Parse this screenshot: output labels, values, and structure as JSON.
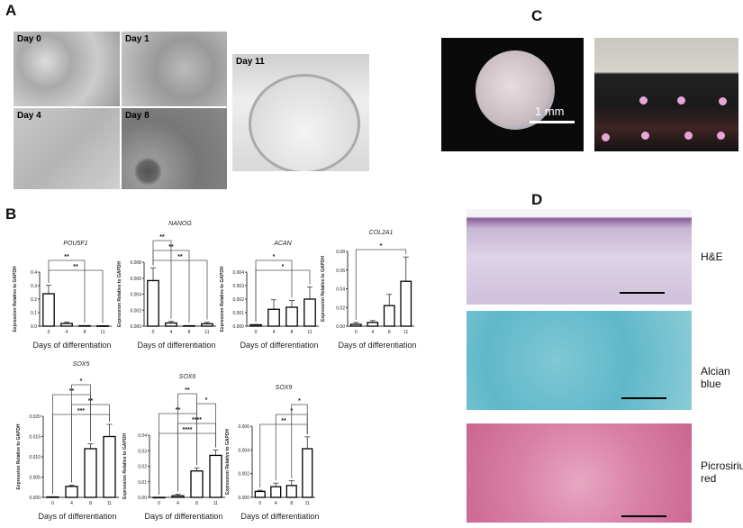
{
  "panels": {
    "a": "A",
    "b": "B",
    "c": "C",
    "d": "D"
  },
  "panel_a": {
    "days": [
      "Day 0",
      "Day 1",
      "Day 4",
      "Day 8"
    ],
    "dish_label": "Day 11"
  },
  "panel_c": {
    "scale_label": "1 mm"
  },
  "panel_d": {
    "stains": [
      "H&E",
      "Alcian blue",
      "Picrosirius red"
    ]
  },
  "colors": {
    "bar_fill": "#ffffff",
    "bar_stroke": "#000000",
    "bracket": "#555555"
  },
  "chart_data": [
    {
      "type": "bar",
      "title": "POU5F1",
      "ylabel": "Expression Relative to GAPDH",
      "xlabel": "Days of differentiation",
      "categories": [
        "0",
        "4",
        "8",
        "11"
      ],
      "values": [
        0.24,
        0.02,
        0.003,
        0.002
      ],
      "errors": [
        0.062,
        0.01,
        0.001,
        0.001
      ],
      "ylim": [
        0,
        0.4
      ],
      "yticks": [
        "0.0",
        "0.1",
        "0.2",
        "0.3",
        "0.4"
      ],
      "significance": [
        {
          "from": "0",
          "to": "8",
          "label": "**"
        },
        {
          "from": "0",
          "to": "11",
          "label": "**"
        }
      ]
    },
    {
      "type": "bar",
      "title": "NANOG",
      "ylabel": "Expression Relative to GAPDH",
      "xlabel": "Days of differentiation",
      "categories": [
        "0",
        "4",
        "8",
        "11"
      ],
      "values": [
        0.0057,
        0.0004,
        5e-05,
        0.0003
      ],
      "errors": [
        0.0016,
        0.0002,
        2e-05,
        0.0002
      ],
      "ylim": [
        0,
        0.008
      ],
      "yticks": [
        "0.000",
        "0.002",
        "0.004",
        "0.006",
        "0.008"
      ],
      "significance": [
        {
          "from": "0",
          "to": "4",
          "label": "**"
        },
        {
          "from": "0",
          "to": "8",
          "label": "**"
        },
        {
          "from": "0",
          "to": "11",
          "label": "**"
        }
      ]
    },
    {
      "type": "bar",
      "title": "ACAN",
      "ylabel": "Expression Relative to GAPDH",
      "xlabel": "Days of differentiation",
      "categories": [
        "0",
        "4",
        "8",
        "11"
      ],
      "values": [
        0.0001,
        0.00125,
        0.0014,
        0.002
      ],
      "errors": [
        2e-05,
        0.0007,
        0.0005,
        0.0009
      ],
      "ylim": [
        0,
        0.004
      ],
      "yticks": [
        "0.000",
        "0.001",
        "0.002",
        "0.003",
        "0.004"
      ],
      "significance": [
        {
          "from": "0",
          "to": "8",
          "label": "*"
        },
        {
          "from": "0",
          "to": "11",
          "label": "*"
        }
      ]
    },
    {
      "type": "bar",
      "title": "COL2A1",
      "ylabel": "Expression Relative to GAPDH",
      "xlabel": "Days of differentiation",
      "categories": [
        "0",
        "4",
        "8",
        "11"
      ],
      "values": [
        0.002,
        0.004,
        0.022,
        0.048
      ],
      "errors": [
        0.002,
        0.002,
        0.012,
        0.026
      ],
      "ylim": [
        0,
        0.08
      ],
      "yticks": [
        "0.00",
        "0.02",
        "0.04",
        "0.06",
        "0.08"
      ],
      "significance": [
        {
          "from": "0",
          "to": "11",
          "label": "*"
        }
      ]
    },
    {
      "type": "bar",
      "title": "SOX5",
      "ylabel": "Expression Relative to GAPDH",
      "xlabel": "Days of differentiation",
      "categories": [
        "0",
        "4",
        "8",
        "11"
      ],
      "values": [
        0.0001,
        0.0027,
        0.012,
        0.015
      ],
      "errors": [
        5e-05,
        0.0003,
        0.0012,
        0.003
      ],
      "ylim": [
        0,
        0.02
      ],
      "yticks": [
        "0.000",
        "0.005",
        "0.010",
        "0.015",
        "0.020"
      ],
      "significance": [
        {
          "from": "4",
          "to": "8",
          "label": "*"
        },
        {
          "from": "0",
          "to": "8",
          "label": "**"
        },
        {
          "from": "4",
          "to": "11",
          "label": "**"
        },
        {
          "from": "0",
          "to": "11",
          "label": "***"
        }
      ]
    },
    {
      "type": "bar",
      "title": "SOX6",
      "ylabel": "Expression Relative to GAPDH",
      "xlabel": "Days of differentiation",
      "categories": [
        "0",
        "4",
        "8",
        "11"
      ],
      "values": [
        0,
        0.001,
        0.017,
        0.027
      ],
      "errors": [
        0,
        0.001,
        0.002,
        0.0035
      ],
      "ylim": [
        0,
        0.04
      ],
      "yticks": [
        "0.00",
        "0.01",
        "0.02",
        "0.03",
        "0.04"
      ],
      "significance": [
        {
          "from": "4",
          "to": "8",
          "label": "**"
        },
        {
          "from": "8",
          "to": "11",
          "label": "*"
        },
        {
          "from": "0",
          "to": "8",
          "label": "**"
        },
        {
          "from": "4",
          "to": "11",
          "label": "****"
        },
        {
          "from": "0",
          "to": "11",
          "label": "****"
        }
      ]
    },
    {
      "type": "bar",
      "title": "SOX9",
      "ylabel": "Expression Relative to GAPDH",
      "xlabel": "Days of differentiation",
      "categories": [
        "0",
        "4",
        "8",
        "11"
      ],
      "values": [
        0.0005,
        0.0009,
        0.001,
        0.0041
      ],
      "errors": [
        0.0001,
        0.0003,
        0.0004,
        0.001
      ],
      "ylim": [
        0,
        0.006
      ],
      "yticks": [
        "0.000",
        "0.002",
        "0.004",
        "0.006"
      ],
      "significance": [
        {
          "from": "8",
          "to": "11",
          "label": "*"
        },
        {
          "from": "4",
          "to": "11",
          "label": "*"
        },
        {
          "from": "0",
          "to": "11",
          "label": "**"
        }
      ]
    }
  ]
}
